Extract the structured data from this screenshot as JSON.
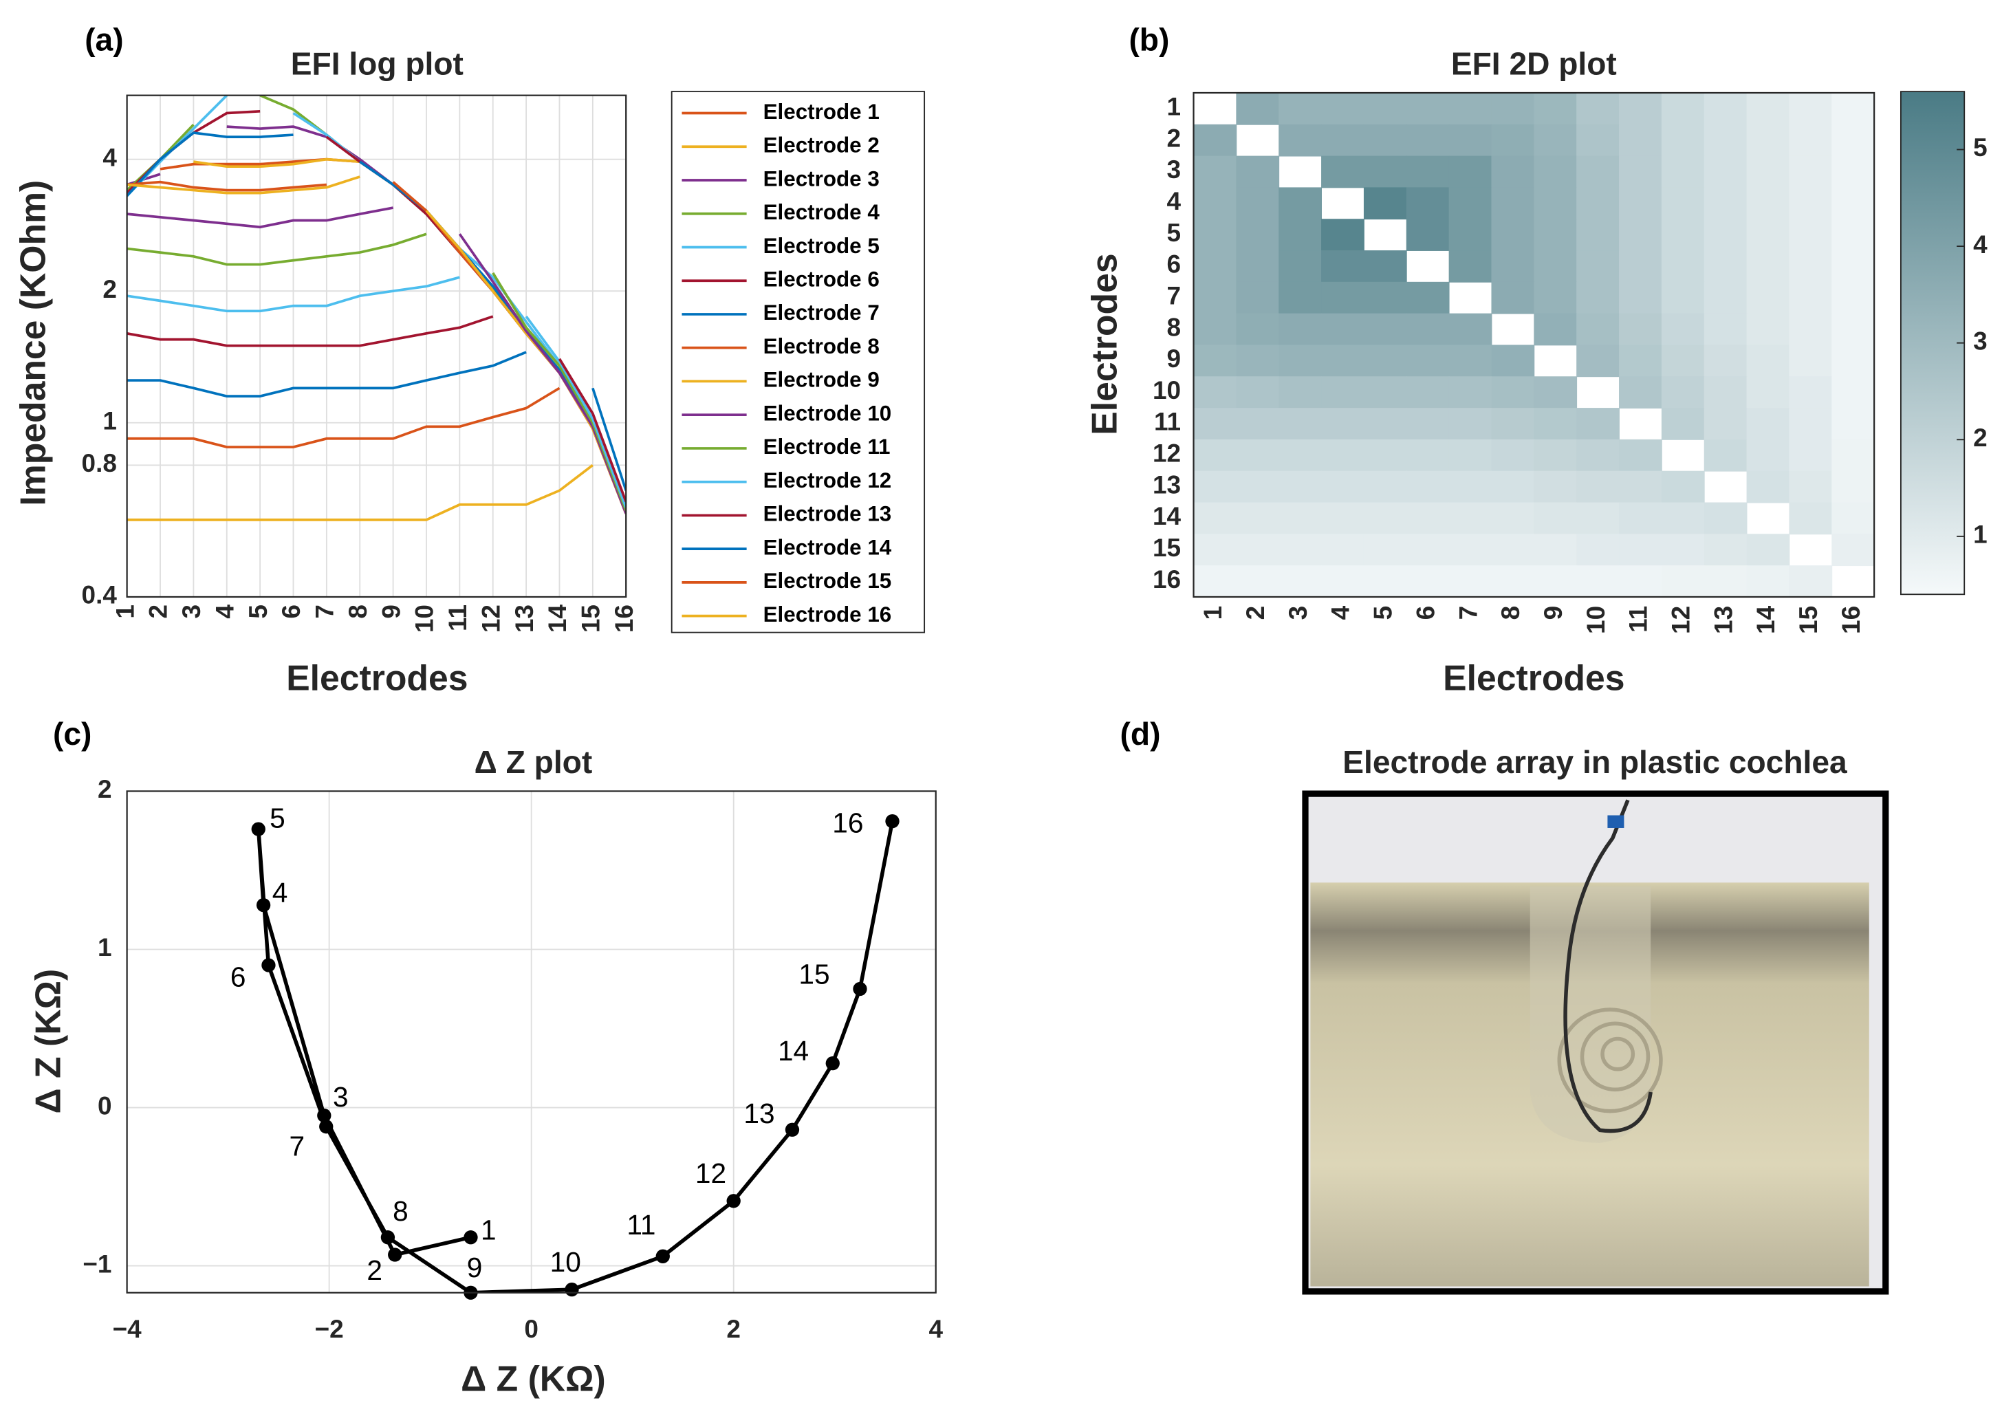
{
  "chart_data": [
    {
      "panel_label": "(a)",
      "type": "line",
      "title": "EFI log plot",
      "x_label": "Electrodes",
      "y_label": "Impedance (KOhm)",
      "x": [
        1,
        2,
        3,
        4,
        5,
        6,
        7,
        8,
        9,
        10,
        11,
        12,
        13,
        14,
        15,
        16
      ],
      "xlim": [
        1,
        16
      ],
      "xticks": [
        1,
        2,
        3,
        4,
        5,
        6,
        7,
        8,
        9,
        10,
        11,
        12,
        13,
        14,
        15,
        16
      ],
      "ylim": [
        0.4,
        5.6
      ],
      "yticks": [
        0.4,
        0.8,
        1,
        2,
        4
      ],
      "log_y": true,
      "grid": true,
      "legend": "outside right",
      "series": [
        {
          "name": "Electrode 1",
          "color": "#D95319",
          "values": [
            null,
            3.8,
            3.9,
            3.9,
            3.9,
            3.95,
            4.0,
            3.95,
            3.5,
            3.0,
            2.45,
            2.0,
            1.6,
            1.3,
            0.97,
            0.62
          ]
        },
        {
          "name": "Electrode 2",
          "color": "#EDB120",
          "values": [
            3.6,
            null,
            3.95,
            3.85,
            3.85,
            3.9,
            4.0,
            3.95,
            3.5,
            3.05,
            2.5,
            2.02,
            1.62,
            1.32,
            1.0,
            0.63
          ]
        },
        {
          "name": "Electrode 3",
          "color": "#7E2F8E",
          "values": [
            3.5,
            3.7,
            null,
            4.75,
            4.7,
            4.75,
            4.5,
            4.0,
            3.5,
            3.0,
            2.45,
            2.0,
            1.6,
            1.3,
            0.98,
            0.62
          ]
        },
        {
          "name": "Electrode 4",
          "color": "#77AC30",
          "values": [
            3.4,
            4.0,
            4.8,
            null,
            5.6,
            5.2,
            4.55,
            3.95,
            3.5,
            3.0,
            2.45,
            2.05,
            1.62,
            1.32,
            1.0,
            0.62
          ]
        },
        {
          "name": "Electrode 5",
          "color": "#4DBEEE",
          "values": [
            3.3,
            3.95,
            4.7,
            5.6,
            null,
            5.1,
            4.55,
            3.95,
            3.5,
            3.05,
            2.5,
            2.15,
            1.7,
            1.35,
            1.05,
            0.64
          ]
        },
        {
          "name": "Electrode 6",
          "color": "#A2142F",
          "values": [
            3.35,
            4.0,
            4.6,
            5.1,
            5.15,
            null,
            4.5,
            3.95,
            3.5,
            3.0,
            2.45,
            2.0,
            1.6,
            1.3,
            0.97,
            0.62
          ]
        },
        {
          "name": "Electrode 7",
          "color": "#0072BD",
          "values": [
            3.3,
            4.0,
            4.6,
            4.5,
            4.5,
            4.55,
            null,
            3.95,
            3.5,
            3.05,
            2.5,
            2.05,
            1.62,
            1.32,
            1.0,
            0.65
          ]
        },
        {
          "name": "Electrode 8",
          "color": "#D95319",
          "values": [
            3.5,
            3.55,
            3.45,
            3.4,
            3.4,
            3.45,
            3.5,
            null,
            3.55,
            3.05,
            2.45,
            2.0,
            1.6,
            1.3,
            0.97,
            0.62
          ]
        },
        {
          "name": "Electrode 9",
          "color": "#EDB120",
          "values": [
            3.5,
            3.45,
            3.4,
            3.35,
            3.35,
            3.4,
            3.45,
            3.65,
            null,
            3.05,
            2.5,
            2.0,
            1.6,
            1.3,
            0.97,
            0.62
          ]
        },
        {
          "name": "Electrode 10",
          "color": "#7E2F8E",
          "values": [
            3.0,
            2.95,
            2.9,
            2.85,
            2.8,
            2.9,
            2.9,
            3.0,
            3.1,
            null,
            2.7,
            2.1,
            1.62,
            1.3,
            0.98,
            0.62
          ]
        },
        {
          "name": "Electrode 11",
          "color": "#77AC30",
          "values": [
            2.5,
            2.45,
            2.4,
            2.3,
            2.3,
            2.35,
            2.4,
            2.45,
            2.55,
            2.7,
            null,
            2.2,
            1.65,
            1.35,
            1.0,
            0.63
          ]
        },
        {
          "name": "Electrode 12",
          "color": "#4DBEEE",
          "values": [
            1.95,
            1.9,
            1.85,
            1.8,
            1.8,
            1.85,
            1.85,
            1.95,
            2.0,
            2.05,
            2.15,
            null,
            1.75,
            1.38,
            1.02,
            0.64
          ]
        },
        {
          "name": "Electrode 13",
          "color": "#A2142F",
          "values": [
            1.6,
            1.55,
            1.55,
            1.5,
            1.5,
            1.5,
            1.5,
            1.5,
            1.55,
            1.6,
            1.65,
            1.75,
            null,
            1.4,
            1.05,
            0.66
          ]
        },
        {
          "name": "Electrode 14",
          "color": "#0072BD",
          "values": [
            1.25,
            1.25,
            1.2,
            1.15,
            1.15,
            1.2,
            1.2,
            1.2,
            1.2,
            1.25,
            1.3,
            1.35,
            1.45,
            null,
            1.2,
            0.7
          ]
        },
        {
          "name": "Electrode 15",
          "color": "#D95319",
          "values": [
            0.92,
            0.92,
            0.92,
            0.88,
            0.88,
            0.88,
            0.92,
            0.92,
            0.92,
            0.98,
            0.98,
            1.03,
            1.08,
            1.2,
            null,
            0.75
          ]
        },
        {
          "name": "Electrode 16",
          "color": "#EDB120",
          "values": [
            0.6,
            0.6,
            0.6,
            0.6,
            0.6,
            0.6,
            0.6,
            0.6,
            0.6,
            0.6,
            0.65,
            0.65,
            0.65,
            0.7,
            0.8,
            null
          ]
        }
      ]
    },
    {
      "panel_label": "(b)",
      "type": "heatmap",
      "title": "EFI 2D plot",
      "x_label": "Electrodes",
      "y_label": "Electrodes",
      "x_categories": [
        "1",
        "2",
        "3",
        "4",
        "5",
        "6",
        "7",
        "8",
        "9",
        "10",
        "11",
        "12",
        "13",
        "14",
        "15",
        "16"
      ],
      "y_categories": [
        "1",
        "2",
        "3",
        "4",
        "5",
        "6",
        "7",
        "8",
        "9",
        "10",
        "11",
        "12",
        "13",
        "14",
        "15",
        "16"
      ],
      "z": [
        [
          null,
          3.6,
          3.3,
          3.3,
          3.3,
          3.3,
          3.3,
          3.3,
          3.1,
          2.5,
          2.2,
          1.7,
          1.4,
          1.1,
          0.9,
          0.6
        ],
        [
          3.6,
          null,
          3.6,
          3.6,
          3.6,
          3.6,
          3.6,
          3.5,
          3.2,
          2.6,
          2.2,
          1.7,
          1.4,
          1.1,
          0.9,
          0.6
        ],
        [
          3.3,
          3.6,
          null,
          4.3,
          4.3,
          4.3,
          4.3,
          3.6,
          3.3,
          2.7,
          2.2,
          1.7,
          1.4,
          1.1,
          0.9,
          0.6
        ],
        [
          3.3,
          3.6,
          4.3,
          null,
          5.2,
          4.8,
          4.3,
          3.6,
          3.3,
          2.7,
          2.2,
          1.7,
          1.4,
          1.1,
          0.9,
          0.6
        ],
        [
          3.3,
          3.6,
          4.3,
          5.2,
          null,
          4.8,
          4.3,
          3.6,
          3.3,
          2.7,
          2.2,
          1.7,
          1.4,
          1.1,
          0.9,
          0.6
        ],
        [
          3.3,
          3.6,
          4.3,
          4.8,
          4.8,
          null,
          4.3,
          3.6,
          3.3,
          2.7,
          2.2,
          1.7,
          1.4,
          1.1,
          0.9,
          0.6
        ],
        [
          3.3,
          3.6,
          4.3,
          4.3,
          4.3,
          4.3,
          null,
          3.6,
          3.3,
          2.7,
          2.2,
          1.7,
          1.4,
          1.1,
          0.9,
          0.6
        ],
        [
          3.3,
          3.5,
          3.6,
          3.6,
          3.6,
          3.6,
          3.6,
          null,
          3.4,
          2.8,
          2.3,
          1.8,
          1.4,
          1.1,
          0.9,
          0.6
        ],
        [
          3.1,
          3.2,
          3.3,
          3.3,
          3.3,
          3.3,
          3.3,
          3.4,
          null,
          2.9,
          2.4,
          1.9,
          1.5,
          1.2,
          0.9,
          0.6
        ],
        [
          2.5,
          2.6,
          2.7,
          2.7,
          2.7,
          2.7,
          2.7,
          2.8,
          2.9,
          null,
          2.5,
          2.0,
          1.6,
          1.2,
          1.0,
          0.6
        ],
        [
          2.2,
          2.2,
          2.2,
          2.2,
          2.2,
          2.2,
          2.2,
          2.3,
          2.4,
          2.5,
          null,
          2.1,
          1.6,
          1.3,
          1.0,
          0.6
        ],
        [
          1.7,
          1.7,
          1.7,
          1.7,
          1.7,
          1.7,
          1.7,
          1.8,
          1.9,
          2.0,
          2.1,
          null,
          1.7,
          1.3,
          1.0,
          0.65
        ],
        [
          1.4,
          1.4,
          1.4,
          1.4,
          1.4,
          1.4,
          1.4,
          1.4,
          1.5,
          1.6,
          1.6,
          1.7,
          null,
          1.4,
          1.1,
          0.65
        ],
        [
          1.1,
          1.1,
          1.1,
          1.1,
          1.1,
          1.1,
          1.1,
          1.1,
          1.2,
          1.2,
          1.3,
          1.3,
          1.4,
          null,
          1.2,
          0.7
        ],
        [
          0.9,
          0.9,
          0.9,
          0.9,
          0.9,
          0.9,
          0.9,
          0.9,
          0.9,
          1.0,
          1.0,
          1.0,
          1.1,
          1.2,
          null,
          0.8
        ],
        [
          0.6,
          0.6,
          0.6,
          0.6,
          0.6,
          0.6,
          0.6,
          0.6,
          0.6,
          0.6,
          0.6,
          0.65,
          0.65,
          0.7,
          0.8,
          null
        ]
      ],
      "clim": [
        0.4,
        5.6
      ],
      "colorbar_ticks": [
        1,
        2,
        3,
        4,
        5
      ],
      "colormap": [
        "#f5f9fa",
        "#4a7b85"
      ]
    },
    {
      "panel_label": "(c)",
      "type": "scatter",
      "title": "Δ Z plot",
      "x_label": "Δ Z (KΩ)",
      "y_label": "Δ Z (KΩ)",
      "color": "#000000",
      "connected": true,
      "grid": true,
      "x": [
        -0.6,
        -1.35,
        -2.05,
        -2.65,
        -2.7,
        -2.6,
        -2.03,
        -1.42,
        -0.6,
        0.4,
        1.3,
        2.0,
        2.58,
        2.98,
        3.25,
        3.57
      ],
      "y": [
        -0.82,
        -0.93,
        -0.05,
        1.28,
        1.76,
        0.9,
        -0.12,
        -0.82,
        -1.17,
        -1.15,
        -0.94,
        -0.59,
        -0.14,
        0.28,
        0.75,
        1.81
      ],
      "point_labels": [
        "1",
        "2",
        "3",
        "4",
        "5",
        "6",
        "7",
        "8",
        "9",
        "10",
        "11",
        "12",
        "13",
        "14",
        "15",
        "16"
      ],
      "xlim": [
        -4,
        4
      ],
      "xticks": [
        {
          "value": -4,
          "label": "−4"
        },
        {
          "value": -2,
          "label": "−2"
        },
        0,
        2,
        4
      ],
      "ylim": [
        -1.17,
        2
      ],
      "yticks": [
        {
          "value": -1,
          "label": "−1"
        },
        0,
        1,
        2
      ]
    },
    {
      "panel_label": "(d)",
      "type": "image",
      "title": "Electrode array in plastic cochlea"
    }
  ]
}
